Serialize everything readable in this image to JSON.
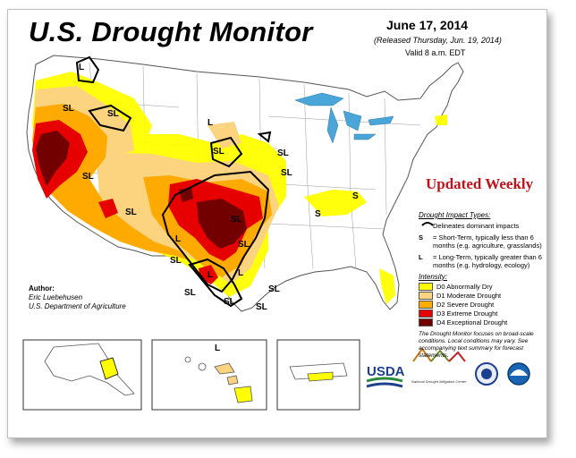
{
  "header": {
    "title": "U.S. Drought Monitor",
    "date": "June 17, 2014",
    "released": "(Released Thursday, Jun. 19, 2014)",
    "valid": "Valid 8 a.m. EDT"
  },
  "banner": "Updated Weekly",
  "legend": {
    "impact_header": "Drought Impact Types:",
    "dominant": "Delineates dominant impacts",
    "short_key": "S",
    "short_text": "= Short-Term, typically less than 6 months (e.g. agriculture, grasslands)",
    "long_key": "L",
    "long_text": "= Long-Term, typically greater than 6 months (e.g. hydrology, ecology)",
    "intensity_header": "Intensity:",
    "levels": [
      {
        "label": "D0 Abnormally Dry",
        "color": "#ffff00"
      },
      {
        "label": "D1 Moderate Drought",
        "color": "#fcd37f"
      },
      {
        "label": "D2 Severe Drought",
        "color": "#ffaa00"
      },
      {
        "label": "D3 Extreme Drought",
        "color": "#e60000"
      },
      {
        "label": "D4 Exceptional Drought",
        "color": "#730000"
      }
    ]
  },
  "footnote": "The Drought Monitor focuses on broad-scale conditions. Local conditions may vary. See accompanying text summary for forecast statements.",
  "author": {
    "label": "Author:",
    "name": "Eric Luebehusen",
    "org": "U.S. Department of Agriculture"
  },
  "map_labels": {
    "sl": "SL",
    "l": "L",
    "s": "S"
  },
  "logos": {
    "usda": "USDA",
    "ndmc": "National Drought Mitigation Center"
  }
}
